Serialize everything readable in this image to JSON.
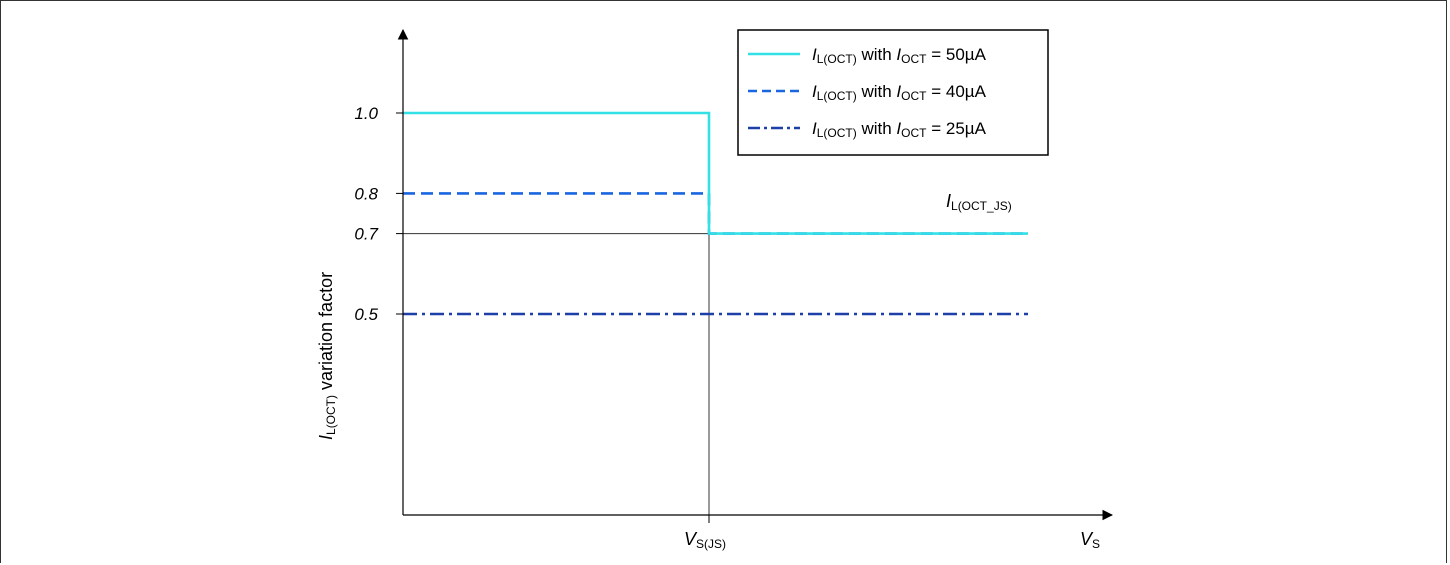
{
  "chart_data": {
    "type": "line",
    "title": "",
    "xlabel": {
      "main": "V",
      "sub": "S"
    },
    "ylabel": {
      "main": "I",
      "sub": "L(OCT)",
      "rest": " variation factor"
    },
    "x_marker": {
      "main": "V",
      "sub": "S(JS)"
    },
    "ylim": [
      0,
      1.4
    ],
    "xlim": [
      0,
      1.4
    ],
    "yticks": [
      {
        "value": 1.0,
        "label": "1.0"
      },
      {
        "value": 0.8,
        "label": "0.8"
      },
      {
        "value": 0.7,
        "label": "0.7"
      },
      {
        "value": 0.5,
        "label": "0.5"
      }
    ],
    "annotation": {
      "main": "I",
      "sub": "L(OCT_JS)",
      "y": 0.7
    },
    "legend_position": "top-right",
    "series": [
      {
        "name_prefix": "I",
        "name_sub": "L(OCT)",
        "name_mid": " with ",
        "name_prefix2": "I",
        "name_sub2": "OCT",
        "name_suffix": " = 50µA",
        "style": "solid",
        "color": "#33e0e6",
        "x": [
          0,
          1.0,
          1.0,
          2.0
        ],
        "y": [
          1.0,
          1.0,
          0.7,
          0.7
        ]
      },
      {
        "name_prefix": "I",
        "name_sub": "L(OCT)",
        "name_mid": " with ",
        "name_prefix2": "I",
        "name_sub2": "OCT",
        "name_suffix": " = 40µA",
        "style": "dashed",
        "color": "#1a66e0",
        "x": [
          0,
          1.0,
          1.0,
          2.0
        ],
        "y": [
          0.8,
          0.8,
          0.7,
          0.7
        ]
      },
      {
        "name_prefix": "I",
        "name_sub": "L(OCT)",
        "name_mid": " with ",
        "name_prefix2": "I",
        "name_sub2": "OCT",
        "name_suffix": " = 25µA",
        "style": "dashdot",
        "color": "#1c3fa8",
        "x": [
          0,
          2.0
        ],
        "y": [
          0.5,
          0.5
        ]
      }
    ]
  }
}
